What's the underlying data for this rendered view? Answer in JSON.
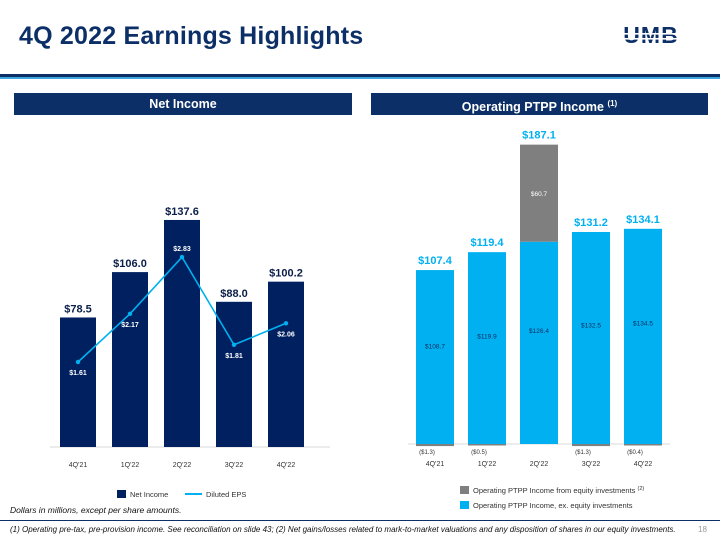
{
  "page": {
    "title": "4Q 2022 Earnings Highlights",
    "logo_text": "UMB",
    "page_number": "18",
    "note": "Dollars in millions, except per share amounts.",
    "footnote": "(1) Operating pre-tax, pre-provision income. See reconciliation on slide 43; (2) Net gains/losses related to mark-to-market valuations and any disposition of shares in our equity investments.",
    "colors": {
      "navy": "#002060",
      "cyan": "#00b0f0",
      "gray": "#7f7f7f",
      "title_navy": "#0b2f66"
    }
  },
  "left_panel": {
    "header": "Net Income"
  },
  "right_panel": {
    "header": "Operating PTPP Income",
    "header_sup": "(1)"
  },
  "chart_data": [
    {
      "type": "bar",
      "categories": [
        "4Q'21",
        "1Q'22",
        "2Q'22",
        "3Q'22",
        "4Q'22"
      ],
      "series": [
        {
          "name": "Net Income",
          "type": "bar",
          "values": [
            78.5,
            106.0,
            137.6,
            88.0,
            100.2
          ],
          "labels": [
            "$78.5",
            "$106.0",
            "$137.6",
            "$88.0",
            "$100.2"
          ]
        },
        {
          "name": "Diluted EPS",
          "type": "line",
          "values": [
            1.61,
            2.17,
            2.83,
            1.81,
            2.06
          ],
          "labels": [
            "$1.61",
            "$2.17",
            "$2.83",
            "$1.81",
            "$2.06"
          ]
        }
      ],
      "legend": [
        "Net Income",
        "Diluted EPS"
      ],
      "legend_position": "bottom"
    },
    {
      "type": "bar",
      "stacked": true,
      "categories": [
        "4Q'21",
        "1Q'22",
        "2Q'22",
        "3Q'22",
        "4Q'22"
      ],
      "totals": [
        107.4,
        119.4,
        187.1,
        131.2,
        134.1
      ],
      "total_labels": [
        "$107.4",
        "$119.4",
        "$187.1",
        "$131.2",
        "$134.1"
      ],
      "series": [
        {
          "name": "Operating PTPP Income, ex. equity investments",
          "values": [
            108.7,
            119.9,
            126.4,
            132.5,
            134.5
          ],
          "labels": [
            "$108.7",
            "$119.9",
            "$126.4",
            "$132.5",
            "$134.5"
          ]
        },
        {
          "name": "Operating PTPP Income from equity investments",
          "name_sup": "(2)",
          "values": [
            -1.3,
            -0.5,
            60.7,
            -1.3,
            -0.4
          ],
          "labels": [
            "($1.3)",
            "($0.5)",
            "$60.7",
            "($1.3)",
            "($0.4)"
          ]
        }
      ],
      "legend_position": "bottom"
    }
  ]
}
